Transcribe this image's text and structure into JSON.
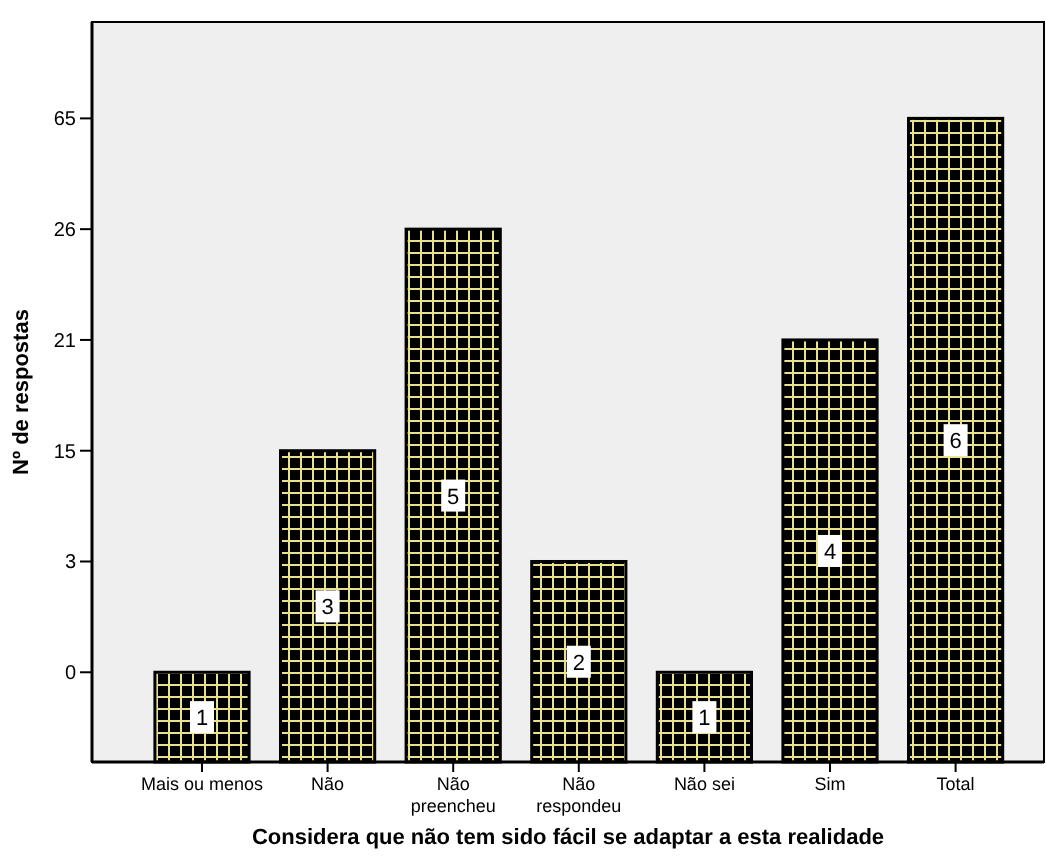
{
  "chart_data": {
    "type": "bar",
    "xlabel": "Considera que não tem sido fácil se adaptar a esta realidade",
    "ylabel": "Nº de respostas",
    "categories": [
      "Mais ou menos",
      "Não",
      "Não\npreencheu",
      "Não\nrespondeu",
      "Não sei",
      "Sim",
      "Total"
    ],
    "values": [
      1,
      3,
      5,
      2,
      1,
      4,
      6
    ],
    "data_labels": true,
    "color": "#000000",
    "ylim": [
      0.19,
      6.87
    ],
    "yticks": [
      {
        "value": 1,
        "label": null
      },
      {
        "value": 2,
        "label": null
      },
      {
        "value": 3,
        "label": null
      },
      {
        "value": 4,
        "label": null
      },
      {
        "value": 5,
        "label": null
      },
      {
        "value": 6,
        "label": null
      }
    ],
    "annotations": [
      "0",
      "3",
      "15",
      "21",
      "26",
      "65"
    ],
    "grid": false
  }
}
